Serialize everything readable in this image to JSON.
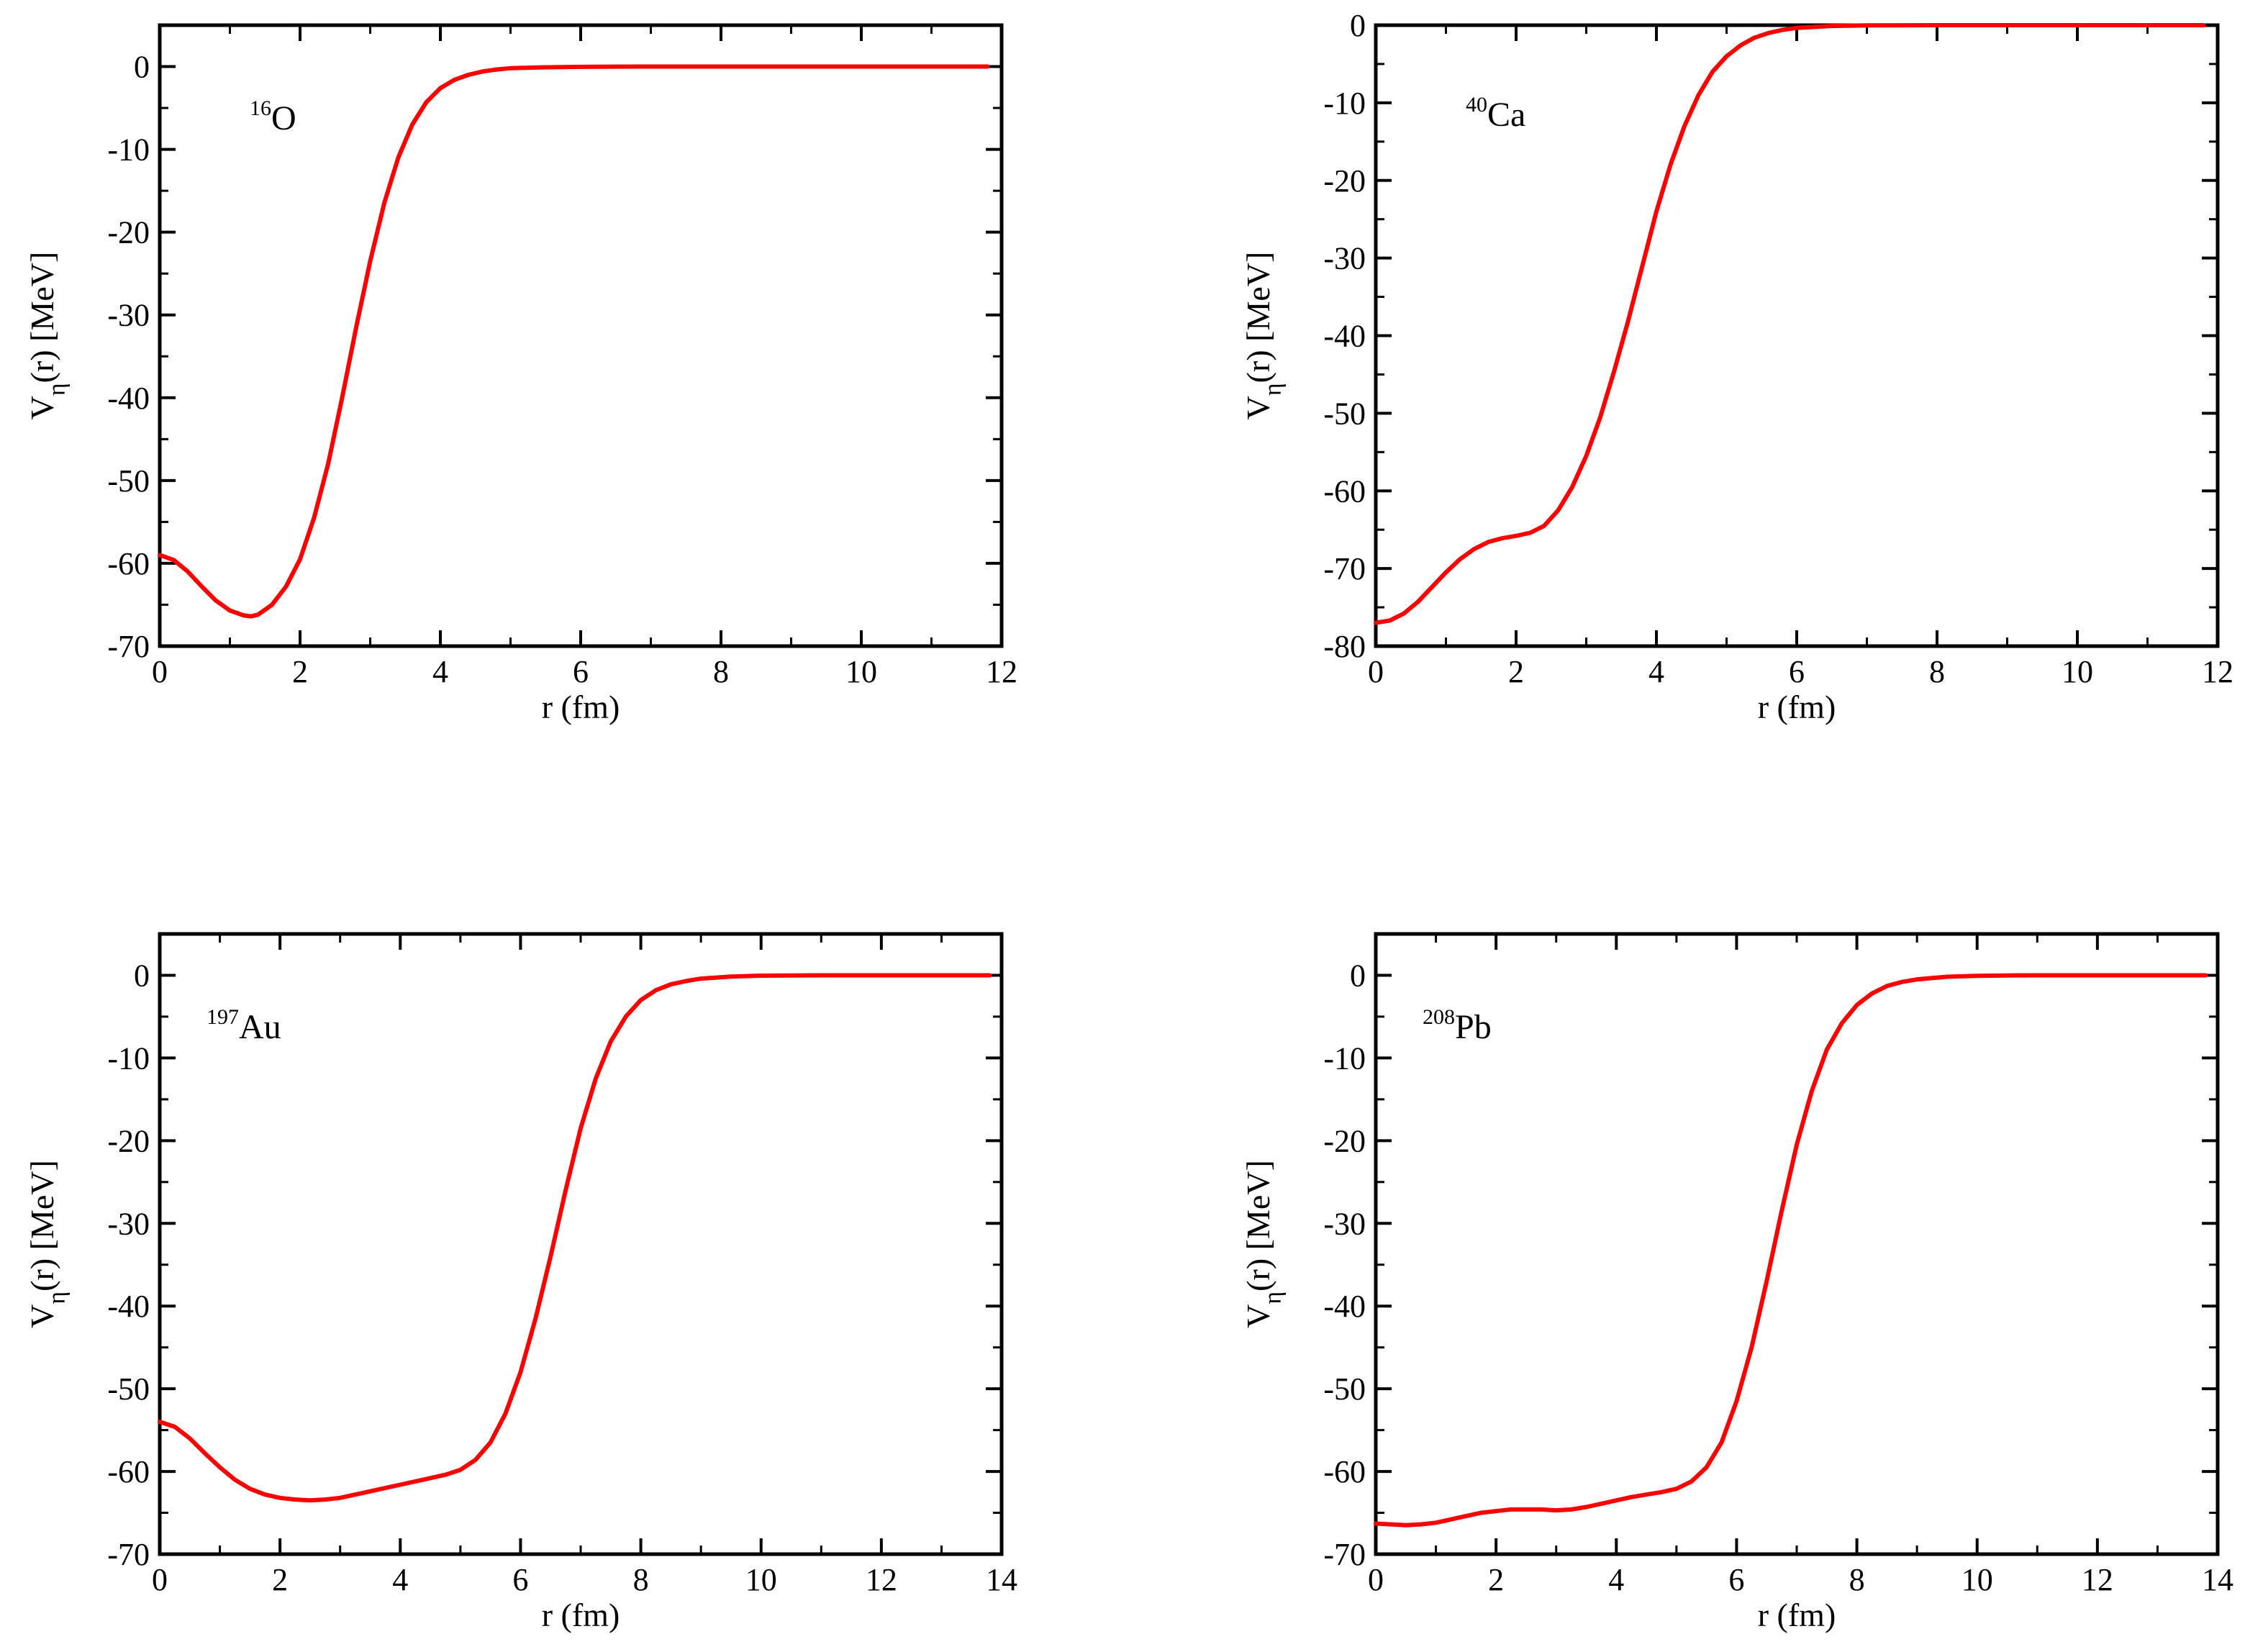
{
  "colors": {
    "curve": "#ff0000",
    "axis": "#000000",
    "background": "#ffffff"
  },
  "chart_data": [
    {
      "type": "line",
      "label": {
        "mass": "16",
        "element": "O"
      },
      "xlabel": "r (fm)",
      "ylabel": {
        "main": "V",
        "sub": "η",
        "rest": "(r)  [MeV]"
      },
      "xlim": [
        0,
        12
      ],
      "ylim": [
        -70,
        5
      ],
      "xticks": [
        "0",
        "2",
        "4",
        "6",
        "8",
        "10",
        "12"
      ],
      "yticks": [
        "0",
        "-10",
        "-20",
        "-30",
        "-40",
        "-50",
        "-60",
        "-70"
      ],
      "series": [
        {
          "x": [
            0,
            0.2,
            0.4,
            0.6,
            0.8,
            1.0,
            1.2,
            1.3,
            1.4,
            1.6,
            1.8,
            2.0,
            2.2,
            2.4,
            2.6,
            2.8,
            3.0,
            3.2,
            3.4,
            3.6,
            3.8,
            4.0,
            4.2,
            4.4,
            4.6,
            4.8,
            5.0,
            5.5,
            6.0,
            6.5,
            7.0,
            8.0,
            9.0,
            10.0,
            11.0,
            11.8
          ],
          "y": [
            -59,
            -59.6,
            -61,
            -62.8,
            -64.5,
            -65.7,
            -66.3,
            -66.4,
            -66.2,
            -65,
            -62.8,
            -59.5,
            -54.5,
            -48,
            -40,
            -31.5,
            -23.5,
            -16.5,
            -11,
            -7,
            -4.3,
            -2.6,
            -1.6,
            -1.0,
            -0.6,
            -0.35,
            -0.2,
            -0.08,
            -0.03,
            -0.01,
            0,
            0,
            0,
            0,
            0,
            0
          ]
        }
      ]
    },
    {
      "type": "line",
      "label": {
        "mass": "40",
        "element": "Ca"
      },
      "xlabel": "r (fm)",
      "ylabel": {
        "main": "V",
        "sub": "η",
        "rest": "(r)  [MeV]"
      },
      "xlim": [
        0,
        12
      ],
      "ylim": [
        -80,
        0
      ],
      "xticks": [
        "0",
        "2",
        "4",
        "6",
        "8",
        "10",
        "12"
      ],
      "yticks": [
        "0",
        "-10",
        "-20",
        "-30",
        "-40",
        "-50",
        "-60",
        "-70",
        "-80"
      ],
      "series": [
        {
          "x": [
            0,
            0.2,
            0.4,
            0.6,
            0.8,
            1.0,
            1.2,
            1.4,
            1.6,
            1.8,
            2.0,
            2.2,
            2.4,
            2.6,
            2.8,
            3.0,
            3.2,
            3.4,
            3.6,
            3.8,
            4.0,
            4.2,
            4.4,
            4.6,
            4.8,
            5.0,
            5.2,
            5.4,
            5.6,
            5.8,
            6.0,
            6.5,
            7.0,
            8.0,
            9.0,
            10.0,
            11.0,
            11.8
          ],
          "y": [
            -77,
            -76.7,
            -75.8,
            -74.3,
            -72.4,
            -70.5,
            -68.8,
            -67.5,
            -66.6,
            -66.1,
            -65.8,
            -65.4,
            -64.5,
            -62.5,
            -59.5,
            -55.5,
            -50.5,
            -44.5,
            -38,
            -31,
            -24,
            -18,
            -13,
            -9,
            -6,
            -4,
            -2.6,
            -1.6,
            -1.0,
            -0.6,
            -0.35,
            -0.1,
            -0.03,
            0,
            0,
            0,
            0,
            0
          ]
        }
      ]
    },
    {
      "type": "line",
      "label": {
        "mass": "197",
        "element": "Au"
      },
      "xlabel": "r (fm)",
      "ylabel": {
        "main": "V",
        "sub": "η",
        "rest": "(r)  [MeV]"
      },
      "xlim": [
        0,
        14
      ],
      "ylim": [
        -70,
        5
      ],
      "xticks": [
        "0",
        "2",
        "4",
        "6",
        "8",
        "10",
        "12",
        "14"
      ],
      "yticks": [
        "0",
        "-10",
        "-20",
        "-30",
        "-40",
        "-50",
        "-60",
        "-70"
      ],
      "series": [
        {
          "x": [
            0,
            0.25,
            0.5,
            0.75,
            1.0,
            1.25,
            1.5,
            1.75,
            2.0,
            2.25,
            2.5,
            2.75,
            3.0,
            3.25,
            3.5,
            3.75,
            4.0,
            4.25,
            4.5,
            4.75,
            5.0,
            5.25,
            5.5,
            5.75,
            6.0,
            6.25,
            6.5,
            6.75,
            7.0,
            7.25,
            7.5,
            7.75,
            8.0,
            8.25,
            8.5,
            8.75,
            9.0,
            9.5,
            10.0,
            10.5,
            11.0,
            12.0,
            13.0,
            13.8
          ],
          "y": [
            -54,
            -54.6,
            -56,
            -57.8,
            -59.5,
            -61,
            -62.1,
            -62.8,
            -63.2,
            -63.4,
            -63.5,
            -63.4,
            -63.2,
            -62.8,
            -62.4,
            -62,
            -61.6,
            -61.2,
            -60.8,
            -60.4,
            -59.8,
            -58.6,
            -56.5,
            -53,
            -48,
            -41.5,
            -34,
            -26,
            -18.5,
            -12.5,
            -8,
            -5,
            -3,
            -1.8,
            -1.1,
            -0.7,
            -0.4,
            -0.15,
            -0.05,
            -0.02,
            0,
            0,
            0,
            0
          ]
        }
      ]
    },
    {
      "type": "line",
      "label": {
        "mass": "208",
        "element": "Pb"
      },
      "xlabel": "r (fm)",
      "ylabel": {
        "main": "V",
        "sub": "η",
        "rest": "(r)  [MeV]"
      },
      "xlim": [
        0,
        14
      ],
      "ylim": [
        -70,
        5
      ],
      "xticks": [
        "0",
        "2",
        "4",
        "6",
        "8",
        "10",
        "12",
        "14"
      ],
      "yticks": [
        "0",
        "-10",
        "-20",
        "-30",
        "-40",
        "-50",
        "-60",
        "-70"
      ],
      "series": [
        {
          "x": [
            0,
            0.25,
            0.5,
            0.75,
            1.0,
            1.25,
            1.5,
            1.75,
            2.0,
            2.25,
            2.5,
            2.75,
            3.0,
            3.25,
            3.5,
            3.75,
            4.0,
            4.25,
            4.5,
            4.75,
            5.0,
            5.25,
            5.5,
            5.75,
            6.0,
            6.25,
            6.5,
            6.75,
            7.0,
            7.25,
            7.5,
            7.75,
            8.0,
            8.25,
            8.5,
            8.75,
            9.0,
            9.5,
            10.0,
            10.5,
            11.0,
            12.0,
            13.0,
            13.8
          ],
          "y": [
            -66.3,
            -66.4,
            -66.5,
            -66.4,
            -66.2,
            -65.8,
            -65.4,
            -65,
            -64.8,
            -64.6,
            -64.6,
            -64.6,
            -64.7,
            -64.6,
            -64.3,
            -63.9,
            -63.5,
            -63.1,
            -62.8,
            -62.5,
            -62.1,
            -61.2,
            -59.5,
            -56.5,
            -51.5,
            -45,
            -37,
            -28.5,
            -20.5,
            -14,
            -9,
            -5.8,
            -3.6,
            -2.2,
            -1.3,
            -0.8,
            -0.5,
            -0.18,
            -0.06,
            -0.02,
            0,
            0,
            0,
            0
          ]
        }
      ]
    }
  ]
}
